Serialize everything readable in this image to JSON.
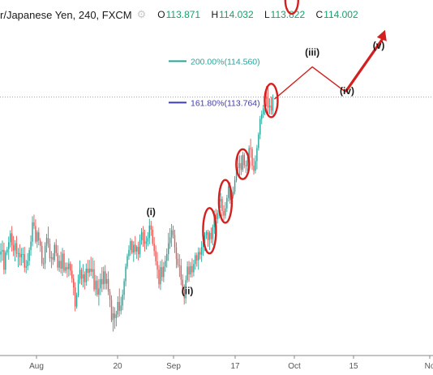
{
  "header": {
    "symbol": "r/Japanese Yen, 240, FXCM",
    "gear_icon": "gear-icon",
    "ohlc": [
      {
        "key": "O",
        "value": "113.871"
      },
      {
        "key": "H",
        "value": "114.032"
      },
      {
        "key": "L",
        "value": "113.822"
      },
      {
        "key": "C",
        "value": "114.002"
      }
    ]
  },
  "colors": {
    "up": "#26a69a",
    "down": "#ef5350",
    "fib200": "#26a69a",
    "fib161": "#3f3fa8",
    "highlight": "#d41f1f",
    "wave": "#d41f1f"
  },
  "chart_data": {
    "type": "candlestick",
    "ylim": [
      108.9,
      115.3
    ],
    "xlabels": [
      "Aug",
      "20",
      "Sep",
      "17",
      "Oct",
      "15",
      "No"
    ],
    "fib_levels": [
      {
        "label": "200.00%(114.560)",
        "value": 114.56
      },
      {
        "label": "161.80%(113.764)",
        "value": 113.764
      }
    ],
    "current_price": 113.87,
    "wave_labels": [
      {
        "label": "(i)",
        "x_bar": 95,
        "price": 111.6
      },
      {
        "label": "(ii)",
        "x_bar": 118,
        "price": 110.08
      },
      {
        "label": "(iii)",
        "x_bar": 197,
        "price": 114.67
      },
      {
        "label": "(iv)",
        "x_bar": 219,
        "price": 113.93
      },
      {
        "label": "(v)",
        "x_bar": 239,
        "price": 114.8
      }
    ],
    "projection": {
      "start_price": 113.83,
      "iii_price": 114.45,
      "iv_price": 113.97,
      "arrow_end_price": 115.1
    },
    "highlighted_bars": [
      132,
      142,
      153,
      171,
      184
    ],
    "ohlc": [
      [
        110.84,
        111.06,
        110.69,
        110.9
      ],
      [
        110.9,
        111.11,
        110.72,
        110.93
      ],
      [
        110.93,
        111.07,
        110.46,
        110.55
      ],
      [
        110.55,
        110.92,
        110.47,
        110.88
      ],
      [
        110.88,
        110.99,
        110.83,
        110.94
      ],
      [
        110.94,
        111.19,
        110.74,
        111.08
      ],
      [
        111.08,
        111.31,
        110.98,
        111.25
      ],
      [
        111.25,
        111.39,
        110.9,
        111.02
      ],
      [
        111.02,
        111.2,
        110.81,
        110.92
      ],
      [
        110.92,
        111.12,
        110.71,
        111.06
      ],
      [
        111.06,
        111.2,
        110.79,
        110.86
      ],
      [
        110.86,
        110.97,
        110.6,
        110.87
      ],
      [
        110.87,
        111.04,
        110.63,
        110.79
      ],
      [
        110.79,
        110.97,
        110.63,
        110.85
      ],
      [
        110.85,
        110.98,
        110.68,
        110.85
      ],
      [
        110.85,
        110.99,
        110.5,
        110.59
      ],
      [
        110.59,
        110.74,
        110.48,
        110.62
      ],
      [
        110.62,
        110.87,
        110.54,
        110.72
      ],
      [
        110.72,
        110.98,
        110.63,
        110.93
      ],
      [
        110.93,
        111.21,
        110.82,
        111.09
      ],
      [
        111.09,
        111.58,
        111.0,
        111.46
      ],
      [
        111.46,
        111.61,
        111.33,
        111.39
      ],
      [
        111.39,
        111.52,
        111.05,
        111.09
      ],
      [
        111.09,
        111.31,
        110.97,
        111.27
      ],
      [
        111.27,
        111.36,
        111.02,
        111.11
      ],
      [
        111.11,
        111.16,
        110.89,
        111.01
      ],
      [
        111.01,
        111.09,
        110.62,
        110.67
      ],
      [
        110.67,
        110.78,
        110.57,
        110.67
      ],
      [
        110.67,
        111.08,
        110.56,
        111.01
      ],
      [
        111.01,
        111.24,
        110.88,
        111.16
      ],
      [
        111.16,
        111.38,
        110.97,
        111.05
      ],
      [
        111.05,
        111.15,
        110.7,
        110.77
      ],
      [
        110.77,
        110.91,
        110.58,
        110.79
      ],
      [
        110.79,
        110.87,
        110.64,
        110.74
      ],
      [
        110.74,
        111.08,
        110.7,
        111.03
      ],
      [
        111.03,
        111.14,
        110.81,
        110.87
      ],
      [
        110.87,
        111.02,
        110.53,
        110.59
      ],
      [
        110.59,
        110.83,
        110.51,
        110.72
      ],
      [
        110.72,
        110.9,
        110.48,
        110.57
      ],
      [
        110.57,
        110.97,
        110.43,
        110.86
      ],
      [
        110.86,
        110.93,
        110.49,
        110.53
      ],
      [
        110.53,
        110.69,
        110.48,
        110.6
      ],
      [
        110.6,
        110.69,
        110.4,
        110.56
      ],
      [
        110.56,
        110.77,
        110.42,
        110.67
      ],
      [
        110.67,
        110.71,
        110.44,
        110.53
      ],
      [
        110.53,
        110.66,
        110.3,
        110.38
      ],
      [
        110.38,
        110.46,
        110.06,
        110.21
      ],
      [
        110.21,
        110.31,
        109.75,
        109.84
      ],
      [
        109.84,
        110.11,
        109.8,
        110.06
      ],
      [
        110.06,
        110.46,
        110.02,
        110.36
      ],
      [
        110.36,
        110.73,
        110.28,
        110.55
      ],
      [
        110.55,
        110.59,
        110.26,
        110.38
      ],
      [
        110.38,
        110.66,
        110.21,
        110.46
      ],
      [
        110.46,
        110.52,
        110.17,
        110.31
      ],
      [
        110.31,
        110.67,
        110.24,
        110.57
      ],
      [
        110.57,
        110.74,
        110.33,
        110.49
      ],
      [
        110.49,
        110.74,
        110.41,
        110.57
      ],
      [
        110.57,
        110.8,
        110.43,
        110.51
      ],
      [
        110.51,
        110.78,
        110.38,
        110.56
      ],
      [
        110.56,
        110.73,
        110.13,
        110.17
      ],
      [
        110.17,
        110.45,
        110.05,
        110.34
      ],
      [
        110.34,
        110.43,
        110.03,
        110.07
      ],
      [
        110.07,
        110.37,
        109.86,
        110.19
      ],
      [
        110.19,
        110.48,
        110.06,
        110.37
      ],
      [
        110.37,
        110.6,
        110.12,
        110.27
      ],
      [
        110.27,
        110.61,
        110.17,
        110.52
      ],
      [
        110.52,
        110.64,
        110.17,
        110.28
      ],
      [
        110.28,
        110.48,
        110.17,
        110.37
      ],
      [
        110.37,
        110.52,
        110.06,
        110.13
      ],
      [
        110.13,
        110.18,
        109.83,
        109.97
      ],
      [
        109.97,
        110.06,
        109.54,
        109.58
      ],
      [
        109.58,
        109.84,
        109.36,
        109.71
      ],
      [
        109.71,
        109.83,
        109.41,
        109.62
      ],
      [
        109.62,
        109.76,
        109.46,
        109.69
      ],
      [
        109.69,
        110.04,
        109.63,
        109.93
      ],
      [
        109.93,
        110.19,
        109.65,
        109.76
      ],
      [
        109.76,
        110.03,
        109.69,
        109.86
      ],
      [
        109.86,
        110.17,
        109.77,
        110.07
      ],
      [
        110.07,
        110.38,
        109.97,
        110.33
      ],
      [
        110.33,
        110.67,
        110.23,
        110.61
      ],
      [
        110.61,
        110.86,
        110.56,
        110.81
      ],
      [
        110.81,
        111.02,
        110.74,
        110.93
      ],
      [
        110.93,
        111.16,
        110.82,
        111.1
      ],
      [
        111.1,
        111.13,
        110.85,
        110.88
      ],
      [
        110.88,
        111.1,
        110.7,
        111.03
      ],
      [
        111.03,
        111.2,
        110.84,
        110.9
      ],
      [
        110.9,
        111.02,
        110.76,
        110.99
      ],
      [
        110.99,
        111.09,
        110.73,
        110.85
      ],
      [
        110.85,
        111.23,
        110.78,
        111.12
      ],
      [
        111.12,
        111.35,
        111.03,
        111.27
      ],
      [
        111.27,
        111.39,
        110.99,
        111.11
      ],
      [
        111.11,
        111.32,
        110.9,
        111.05
      ],
      [
        111.05,
        111.2,
        110.94,
        111.09
      ],
      [
        111.09,
        111.27,
        111.0,
        111.16
      ],
      [
        111.16,
        111.53,
        111.04,
        111.4
      ],
      [
        111.4,
        111.49,
        111.2,
        111.32
      ],
      [
        111.32,
        111.39,
        111.01,
        111.05
      ],
      [
        111.05,
        111.18,
        110.81,
        110.91
      ],
      [
        110.91,
        111.02,
        110.63,
        110.71
      ],
      [
        110.71,
        110.89,
        110.38,
        110.55
      ],
      [
        110.55,
        110.64,
        110.19,
        110.27
      ],
      [
        110.27,
        110.72,
        110.16,
        110.6
      ],
      [
        110.6,
        110.75,
        110.33,
        110.41
      ],
      [
        110.41,
        110.7,
        110.31,
        110.61
      ],
      [
        110.61,
        110.82,
        110.51,
        110.72
      ],
      [
        110.72,
        110.96,
        110.59,
        110.85
      ],
      [
        110.85,
        111.26,
        110.72,
        111.06
      ],
      [
        111.06,
        111.35,
        110.95,
        111.17
      ],
      [
        111.17,
        111.43,
        110.99,
        111.31
      ],
      [
        111.31,
        111.4,
        111.15,
        111.22
      ],
      [
        111.22,
        111.32,
        110.87,
        110.98
      ],
      [
        110.98,
        111.08,
        110.58,
        110.76
      ],
      [
        110.76,
        110.87,
        110.59,
        110.64
      ],
      [
        110.64,
        110.85,
        110.41,
        110.63
      ],
      [
        110.63,
        110.76,
        110.25,
        110.36
      ],
      [
        110.36,
        110.46,
        110.12,
        110.17
      ],
      [
        110.17,
        110.27,
        109.88,
        110.0
      ],
      [
        110.0,
        110.44,
        109.9,
        110.35
      ],
      [
        110.35,
        110.71,
        110.3,
        110.61
      ],
      [
        110.61,
        110.72,
        110.32,
        110.46
      ],
      [
        110.46,
        110.7,
        110.4,
        110.62
      ],
      [
        110.62,
        110.77,
        110.4,
        110.5
      ],
      [
        110.5,
        110.74,
        110.42,
        110.66
      ],
      [
        110.66,
        110.88,
        110.55,
        110.83
      ],
      [
        110.83,
        110.88,
        110.61,
        110.73
      ],
      [
        110.73,
        110.98,
        110.55,
        110.89
      ],
      [
        110.89,
        110.97,
        110.75,
        110.84
      ],
      [
        110.84,
        111.1,
        110.7,
        110.99
      ],
      [
        110.99,
        111.25,
        110.82,
        111.07
      ],
      [
        111.07,
        111.27,
        110.91,
        111.22
      ],
      [
        111.22,
        111.31,
        111.14,
        111.27
      ],
      [
        111.27,
        111.32,
        110.99,
        111.12
      ],
      [
        111.12,
        111.3,
        110.93,
        111.26
      ],
      [
        111.26,
        111.36,
        111.06,
        111.14
      ],
      [
        111.14,
        111.42,
        111.02,
        111.37
      ],
      [
        111.37,
        111.69,
        111.24,
        111.61
      ],
      [
        111.61,
        111.72,
        111.42,
        111.52
      ],
      [
        111.52,
        111.7,
        111.44,
        111.64
      ],
      [
        111.64,
        111.91,
        111.53,
        111.86
      ],
      [
        111.86,
        112.03,
        111.74,
        111.91
      ],
      [
        111.91,
        111.96,
        111.58,
        111.68
      ],
      [
        111.68,
        111.79,
        111.5,
        111.59
      ],
      [
        111.59,
        111.85,
        111.53,
        111.73
      ],
      [
        111.73,
        111.99,
        111.66,
        111.93
      ],
      [
        111.93,
        112.2,
        111.86,
        112.15
      ],
      [
        112.15,
        112.23,
        111.82,
        111.89
      ],
      [
        111.89,
        112.08,
        111.8,
        111.97
      ],
      [
        111.97,
        112.15,
        111.92,
        112.05
      ],
      [
        112.05,
        112.35,
        112.0,
        112.27
      ],
      [
        112.27,
        112.58,
        112.23,
        112.52
      ],
      [
        112.52,
        112.73,
        112.36,
        112.51
      ],
      [
        112.51,
        112.75,
        112.34,
        112.6
      ],
      [
        112.6,
        112.75,
        112.37,
        112.47
      ],
      [
        112.47,
        112.82,
        112.43,
        112.76
      ],
      [
        112.76,
        112.8,
        112.5,
        112.56
      ],
      [
        112.56,
        112.65,
        112.41,
        112.54
      ],
      [
        112.54,
        112.72,
        112.45,
        112.66
      ],
      [
        112.66,
        112.94,
        112.51,
        112.89
      ],
      [
        112.89,
        113.07,
        112.7,
        112.87
      ],
      [
        112.87,
        112.91,
        112.47,
        112.55
      ],
      [
        112.55,
        112.7,
        112.38,
        112.45
      ],
      [
        112.45,
        112.75,
        112.4,
        112.64
      ],
      [
        112.64,
        112.95,
        112.48,
        112.89
      ],
      [
        112.89,
        113.19,
        112.84,
        113.15
      ],
      [
        113.15,
        113.51,
        113.06,
        113.45
      ],
      [
        113.45,
        113.61,
        113.35,
        113.54
      ],
      [
        113.54,
        113.72,
        113.47,
        113.65
      ],
      [
        113.65,
        113.95,
        113.52,
        113.88
      ],
      [
        113.88,
        114.08,
        113.69,
        113.84
      ],
      [
        113.84,
        114.05,
        113.55,
        113.67
      ],
      [
        113.67,
        113.85,
        113.54,
        113.71
      ],
      [
        113.71,
        113.88,
        113.53,
        113.61
      ],
      [
        113.61,
        113.92,
        113.53,
        113.87
      ]
    ]
  }
}
